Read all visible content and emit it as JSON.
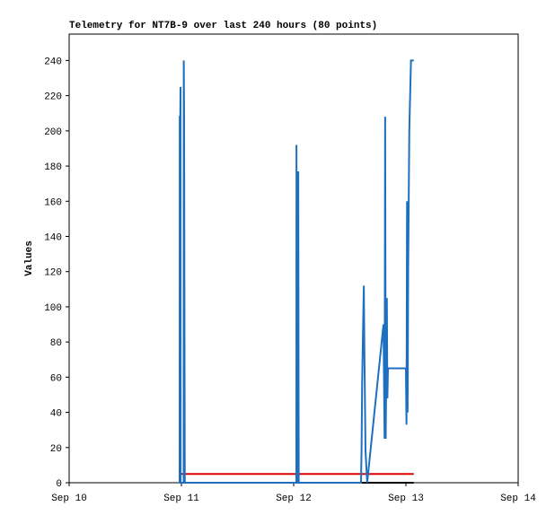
{
  "chart_data": {
    "type": "line",
    "title": "Telemetry for NT7B-9 over last 240 hours (80 points)",
    "ylabel": "Values",
    "xlim": [
      0,
      4
    ],
    "ylim": [
      0,
      255
    ],
    "xticks": [
      {
        "value": 0,
        "label": "Sep 10"
      },
      {
        "value": 1,
        "label": "Sep 11"
      },
      {
        "value": 2,
        "label": "Sep 12"
      },
      {
        "value": 3,
        "label": "Sep 13"
      },
      {
        "value": 4,
        "label": "Sep 14"
      }
    ],
    "yticks": [
      0,
      20,
      40,
      60,
      80,
      100,
      120,
      140,
      160,
      180,
      200,
      220,
      240
    ],
    "series": [
      {
        "color": "#000000",
        "x": [
          0.984,
          3.07
        ],
        "values": [
          0,
          0
        ]
      },
      {
        "color": "#dd0000",
        "x": [
          0.984,
          3.07
        ],
        "values": [
          5,
          5
        ]
      },
      {
        "color": "#1f6fc0",
        "x": [
          0.984,
          0.985,
          0.99,
          0.992,
          0.993,
          1.02,
          1.021,
          1.024,
          1.027,
          1.03,
          2.024,
          2.025,
          2.03,
          2.04,
          2.041,
          2.045,
          2.6,
          2.605,
          2.61,
          2.62,
          2.625,
          2.63,
          2.64,
          2.655,
          2.8,
          2.81,
          2.815,
          2.82,
          2.83,
          2.835,
          2.84,
          3.0,
          3.005,
          3.01,
          3.015,
          3.02,
          3.03,
          3.045,
          3.07
        ],
        "values": [
          0,
          208,
          208,
          225,
          0,
          0,
          240,
          208,
          105,
          0,
          0,
          192,
          0,
          0,
          177,
          0,
          0,
          20,
          57,
          94,
          112,
          75,
          18,
          0,
          90,
          25,
          208,
          25,
          105,
          48,
          65,
          65,
          33,
          160,
          40,
          120,
          200,
          240,
          240
        ]
      }
    ]
  }
}
